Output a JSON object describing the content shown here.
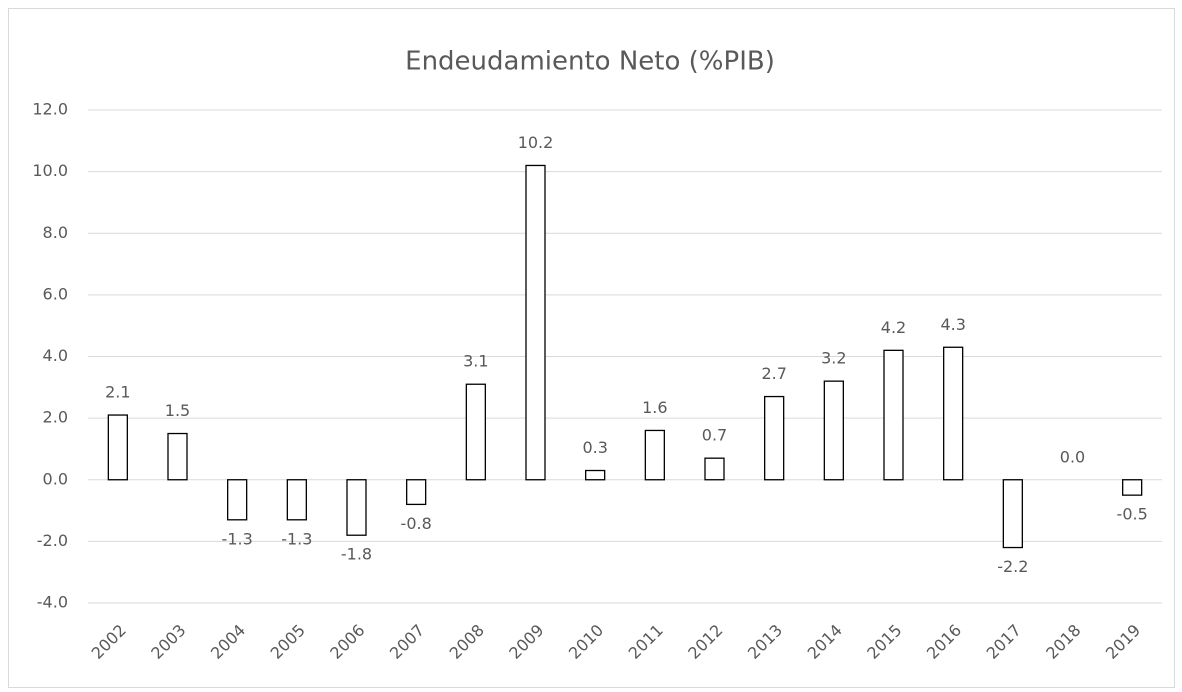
{
  "chart_data": {
    "type": "bar",
    "title": "Endeudamiento Neto (%PIB)",
    "categories": [
      "2002",
      "2003",
      "2004",
      "2005",
      "2006",
      "2007",
      "2008",
      "2009",
      "2010",
      "2011",
      "2012",
      "2013",
      "2014",
      "2015",
      "2016",
      "2017",
      "2018",
      "2019"
    ],
    "values": [
      2.1,
      1.5,
      -1.3,
      -1.3,
      -1.8,
      -0.8,
      3.1,
      10.2,
      0.3,
      1.6,
      0.7,
      2.7,
      3.2,
      4.2,
      4.3,
      -2.2,
      0,
      -0.5
    ],
    "value_labels": [
      "2.1",
      "1.5",
      "-1.3",
      "-1.3",
      "-1.8",
      "-0.8",
      "3.1",
      "10.2",
      "0.3",
      "1.6",
      "0.7",
      "2.7",
      "3.2",
      "4.2",
      "4.3",
      "-2.2",
      "0.0",
      "-0.5"
    ],
    "color": "#ffffff",
    "ylim": [
      -4,
      12
    ],
    "yticks": [
      {
        "value": -4,
        "label": "-4.0"
      },
      {
        "value": -2,
        "label": "-2.0"
      },
      {
        "value": 0,
        "label": "0.0"
      },
      {
        "value": 2,
        "label": "2.0"
      },
      {
        "value": 4,
        "label": "4.0"
      },
      {
        "value": 6,
        "label": "6.0"
      },
      {
        "value": 8,
        "label": "8.0"
      },
      {
        "value": 10,
        "label": "10.0"
      },
      {
        "value": 12,
        "label": "12.0"
      }
    ],
    "grid": true
  }
}
